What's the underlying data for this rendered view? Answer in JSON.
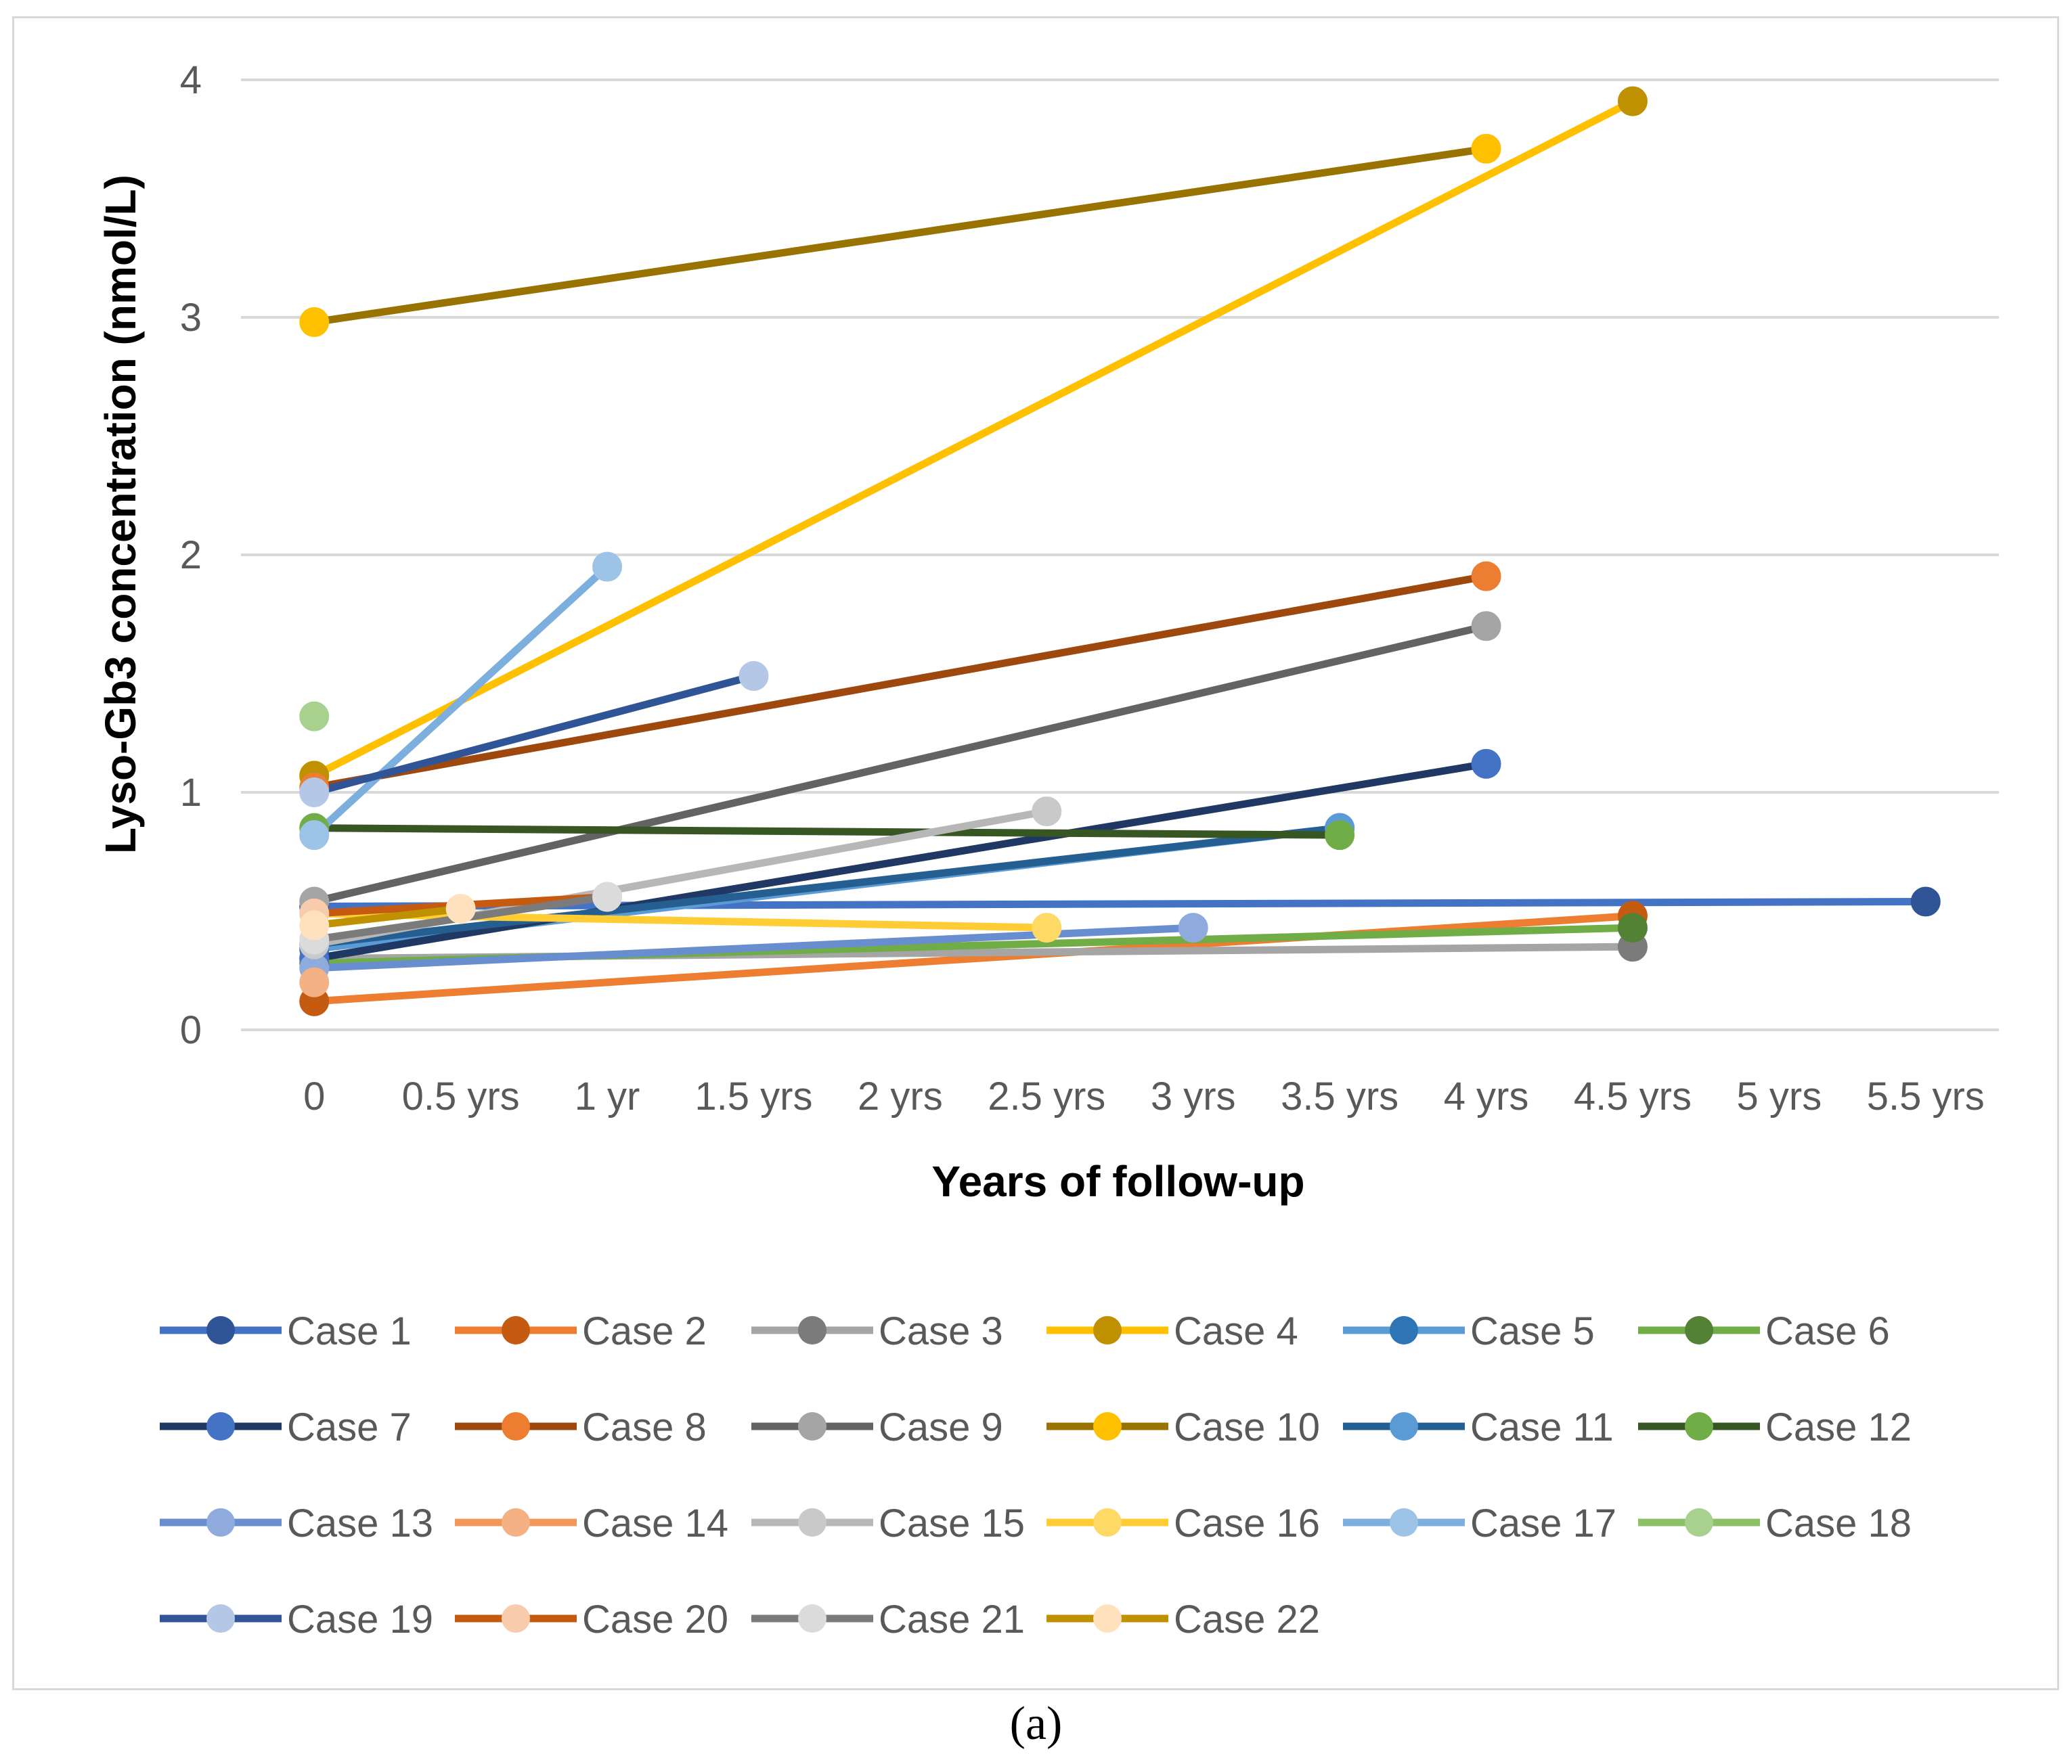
{
  "caption": "(a)",
  "chart_data": {
    "type": "line",
    "title": "",
    "xlabel": "Years of follow-up",
    "ylabel": "Lyso-Gb3 concentration (nmol/L)",
    "categories": [
      "0",
      "0.5 yrs",
      "1 yr",
      "1.5 yrs",
      "2 yrs",
      "2.5 yrs",
      "3 yrs",
      "3.5 yrs",
      "4 yrs",
      "4.5 yrs",
      "5 yrs",
      "5.5 yrs"
    ],
    "ylim": [
      0,
      4
    ],
    "yticks": [
      "0",
      "1",
      "2",
      "3",
      "4"
    ],
    "grid": "horizontal",
    "legend_position": "bottom",
    "series": [
      {
        "name": "Case 1",
        "line_color": "#4472C4",
        "marker_color": "#2F5597",
        "points": [
          [
            0,
            0.52
          ],
          [
            11,
            0.54
          ]
        ]
      },
      {
        "name": "Case 2",
        "line_color": "#ED7D31",
        "marker_color": "#C55A11",
        "points": [
          [
            0,
            0.12
          ],
          [
            9,
            0.48
          ]
        ]
      },
      {
        "name": "Case 3",
        "line_color": "#A5A5A5",
        "marker_color": "#7B7B7B",
        "points": [
          [
            0,
            0.3
          ],
          [
            9,
            0.35
          ]
        ]
      },
      {
        "name": "Case 4",
        "line_color": "#FFC000",
        "marker_color": "#BF9000",
        "points": [
          [
            0,
            1.07
          ],
          [
            9,
            3.91
          ]
        ]
      },
      {
        "name": "Case 5",
        "line_color": "#5B9BD5",
        "marker_color": "#2E75B6",
        "points": [
          [
            0,
            0.34
          ],
          [
            7,
            0.85
          ]
        ]
      },
      {
        "name": "Case 6",
        "line_color": "#70AD47",
        "marker_color": "#548235",
        "points": [
          [
            0,
            0.28
          ],
          [
            9,
            0.43
          ]
        ]
      },
      {
        "name": "Case 7",
        "line_color": "#203864",
        "marker_color": "#4472C4",
        "points": [
          [
            0,
            0.3
          ],
          [
            8,
            1.12
          ]
        ]
      },
      {
        "name": "Case 8",
        "line_color": "#9E480E",
        "marker_color": "#ED7D31",
        "points": [
          [
            0,
            1.02
          ],
          [
            8,
            1.91
          ]
        ]
      },
      {
        "name": "Case 9",
        "line_color": "#636363",
        "marker_color": "#A5A5A5",
        "points": [
          [
            0,
            0.54
          ],
          [
            8,
            1.7
          ]
        ]
      },
      {
        "name": "Case 10",
        "line_color": "#997300",
        "marker_color": "#FFC000",
        "points": [
          [
            0,
            2.98
          ],
          [
            8,
            3.71
          ]
        ]
      },
      {
        "name": "Case 11",
        "line_color": "#255E91",
        "marker_color": "#5B9BD5",
        "points": [
          [
            0,
            0.36
          ],
          [
            7,
            0.85
          ]
        ]
      },
      {
        "name": "Case 12",
        "line_color": "#375623",
        "marker_color": "#70AD47",
        "points": [
          [
            0,
            0.85
          ],
          [
            7,
            0.82
          ]
        ]
      },
      {
        "name": "Case 13",
        "line_color": "#698ED0",
        "marker_color": "#8FAADC",
        "points": [
          [
            0,
            0.26
          ],
          [
            6,
            0.43
          ]
        ]
      },
      {
        "name": "Case 14",
        "line_color": "#F1975A",
        "marker_color": "#F4B183",
        "points": [
          [
            0,
            0.2
          ]
        ]
      },
      {
        "name": "Case 15",
        "line_color": "#B7B7B7",
        "marker_color": "#C9C9C9",
        "points": [
          [
            0,
            0.36
          ],
          [
            5,
            0.92
          ]
        ]
      },
      {
        "name": "Case 16",
        "line_color": "#FFCD33",
        "marker_color": "#FFD966",
        "points": [
          [
            0,
            0.49
          ],
          [
            5,
            0.43
          ]
        ]
      },
      {
        "name": "Case 17",
        "line_color": "#7CAFDD",
        "marker_color": "#9DC3E6",
        "points": [
          [
            0,
            0.82
          ],
          [
            2,
            1.95
          ]
        ]
      },
      {
        "name": "Case 18",
        "line_color": "#8CC168",
        "marker_color": "#A9D18E",
        "points": [
          [
            0,
            1.32
          ]
        ]
      },
      {
        "name": "Case 19",
        "line_color": "#2F5597",
        "marker_color": "#B4C7E7",
        "points": [
          [
            0,
            1.0
          ],
          [
            3,
            1.49
          ]
        ]
      },
      {
        "name": "Case 20",
        "line_color": "#C55A11",
        "marker_color": "#F8CBAD",
        "points": [
          [
            0,
            0.49
          ],
          [
            2,
            0.56
          ]
        ]
      },
      {
        "name": "Case 21",
        "line_color": "#7B7B7B",
        "marker_color": "#DBDBDB",
        "points": [
          [
            0,
            0.38
          ],
          [
            2,
            0.56
          ]
        ]
      },
      {
        "name": "Case 22",
        "line_color": "#BF9000",
        "marker_color": "#FFE2BD",
        "points": [
          [
            0,
            0.44
          ],
          [
            1,
            0.51
          ]
        ]
      }
    ]
  }
}
